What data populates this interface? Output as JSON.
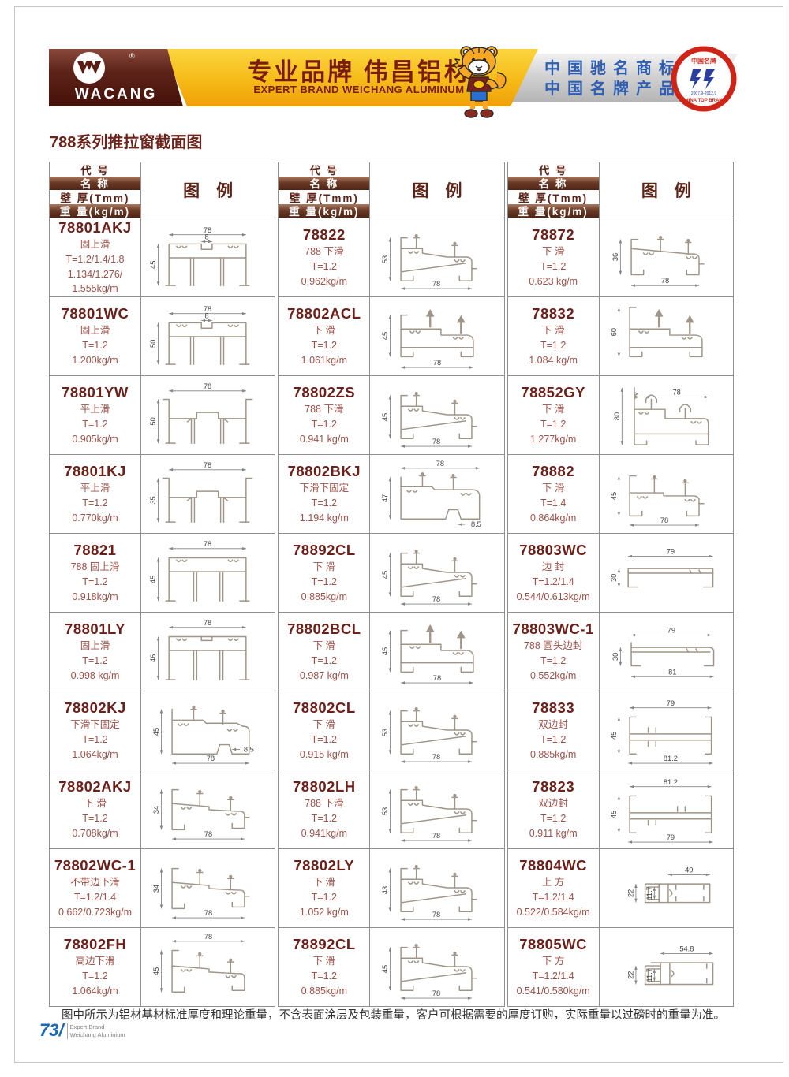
{
  "page": {
    "title": "788系列推拉窗截面图",
    "footer_note": "图中所示为铝材基材标准厚度和理论重量，不含表面涂层及包装重量，客户可根据需要的厚度订购，实际重量以过磅时的重量为准。",
    "page_number": "73/",
    "page_caption_line1": "Expert Brand",
    "page_caption_line2": "Weichang Aluminium"
  },
  "banner": {
    "logo_text": "WACANG",
    "logo_reg": "®",
    "slogan_cn": "专业品牌  伟昌铝材",
    "slogan_en": "EXPERT BRAND WEICHANG ALUMINUM",
    "honor_line1": "中国驰名商标",
    "honor_line2": "中国名牌产品",
    "badge_top": "中国名牌",
    "badge_dates": "2007.9-2012.9",
    "badge_bottom": "CHINA TOP BRAND",
    "colors": {
      "maroon": "#5e241a",
      "gold": "#f6bb18",
      "gray": "#c9c9c9",
      "blue": "#2f5fb3",
      "red": "#cf2418"
    }
  },
  "table": {
    "header": {
      "code": "代  号",
      "name": "名  称",
      "thickness": "壁 厚(Tmm)",
      "weight": "重 量(kg/m)",
      "legend": "图　例"
    },
    "columns": [
      {
        "rows": [
          {
            "code": "78801AKJ",
            "name": "固上滑",
            "thickness": "T=1.2/1.4/1.8",
            "weight": "1.134/1.276/\n1.555kg/m",
            "shape": "fixedTop",
            "dims": {
              "top": "78",
              "topSmall": "8",
              "left": "45"
            }
          },
          {
            "code": "78801WC",
            "name": "固上滑",
            "thickness": "T=1.2",
            "weight": "1.200kg/m",
            "shape": "fixedTop",
            "dims": {
              "top": "78",
              "topSmall": "8",
              "left": "50"
            }
          },
          {
            "code": "78801YW",
            "name": "平上滑",
            "thickness": "T=1.2",
            "weight": "0.905kg/m",
            "shape": "flatTop",
            "dims": {
              "top": "78",
              "left": "50"
            }
          },
          {
            "code": "78801KJ",
            "name": "平上滑",
            "thickness": "T=1.2",
            "weight": "0.770kg/m",
            "shape": "flatTop",
            "dims": {
              "top": "78",
              "left": "35"
            }
          },
          {
            "code": "78821",
            "name": "788 固上滑",
            "thickness": "T=1.2",
            "weight": "0.918kg/m",
            "shape": "boxTop",
            "dims": {
              "top": "78",
              "left": "45"
            }
          },
          {
            "code": "78801LY",
            "name": "固上滑",
            "thickness": "T=1.2",
            "weight": "0.998 kg/m",
            "shape": "boxTopNotch",
            "dims": {
              "top": "78",
              "left": "46"
            }
          },
          {
            "code": "78802KJ",
            "name": "下滑下固定",
            "thickness": "T=1.2",
            "weight": "1.064kg/m",
            "shape": "slideNotchB",
            "dims": {
              "left": "45",
              "small": "8.5",
              "bottom": "78"
            }
          },
          {
            "code": "78802AKJ",
            "name": "下 滑",
            "thickness": "T=1.2",
            "weight": "0.708kg/m",
            "shape": "slide",
            "dims": {
              "left": "34",
              "bottom": "78"
            }
          },
          {
            "code": "78802WC-1",
            "name": "不带边下滑",
            "thickness": "T=1.2/1.4",
            "weight": "0.662/0.723kg/m",
            "shape": "slide",
            "dims": {
              "left": "34",
              "bottom": "78"
            }
          },
          {
            "code": "78802FH",
            "name": "高边下滑",
            "thickness": "T=1.2",
            "weight": "1.064kg/m",
            "shape": "slideTopDim",
            "dims": {
              "top": "78",
              "left": "45"
            }
          }
        ]
      },
      {
        "rows": [
          {
            "code": "78822",
            "name": "788 下滑",
            "thickness": "T=1.2",
            "weight": "0.962kg/m",
            "shape": "slideSloped",
            "dims": {
              "left": "53",
              "bottom": "78"
            }
          },
          {
            "code": "78802ACL",
            "name": "下 滑",
            "thickness": "T=1.2",
            "weight": "1.061kg/m",
            "shape": "slideArrows",
            "dims": {
              "left": "45",
              "bottom": "78"
            }
          },
          {
            "code": "78802ZS",
            "name": "788 下滑",
            "thickness": "T=1.2",
            "weight": "0.941 kg/m",
            "shape": "slideSloped",
            "dims": {
              "left": "45",
              "bottom": "78"
            }
          },
          {
            "code": "78802BKJ",
            "name": "下滑下固定",
            "thickness": "T=1.2",
            "weight": "1.194 kg/m",
            "shape": "slideNotchT",
            "dims": {
              "top": "78",
              "left": "47",
              "small": "8.5"
            }
          },
          {
            "code": "78892CL",
            "name": "下 滑",
            "thickness": "T=1.2",
            "weight": "0.885kg/m",
            "shape": "slideSloped",
            "dims": {
              "left": "45",
              "bottom": "78"
            }
          },
          {
            "code": "78802BCL",
            "name": "下 滑",
            "thickness": "T=1.2",
            "weight": "0.987 kg/m",
            "shape": "slideArrows",
            "dims": {
              "left": "45",
              "bottom": "78"
            }
          },
          {
            "code": "78802CL",
            "name": "下 滑",
            "thickness": "T=1.2",
            "weight": "0.915 kg/m",
            "shape": "slideSloped",
            "dims": {
              "left": "53",
              "bottom": "78"
            }
          },
          {
            "code": "78802LH",
            "name": "788 下滑",
            "thickness": "T=1.2",
            "weight": "0.941kg/m",
            "shape": "slideSloped",
            "dims": {
              "left": "53",
              "bottom": "78"
            }
          },
          {
            "code": "78802LY",
            "name": "下 滑",
            "thickness": "T=1.2",
            "weight": "1.052 kg/m",
            "shape": "slideSloped",
            "dims": {
              "left": "43",
              "bottom": "78"
            }
          },
          {
            "code": "78892CL",
            "name": "下 滑",
            "thickness": "T=1.2",
            "weight": "0.885kg/m",
            "shape": "slideSloped",
            "dims": {
              "left": "45",
              "bottom": "78"
            }
          }
        ]
      },
      {
        "rows": [
          {
            "code": "78872",
            "name": "下 滑",
            "thickness": "T=1.2",
            "weight": "0.623 kg/m",
            "shape": "slideLow",
            "dims": {
              "left": "36",
              "bottom": "78"
            }
          },
          {
            "code": "78832",
            "name": "下 滑",
            "thickness": "T=1.2",
            "weight": "1.084 kg/m",
            "shape": "slideArrowsTall",
            "dims": {
              "left": "60"
            }
          },
          {
            "code": "78852GY",
            "name": "下 滑",
            "thickness": "T=1.2",
            "weight": "1.277kg/m",
            "shape": "steppedDouble",
            "dims": {
              "left": "80",
              "top": "78"
            }
          },
          {
            "code": "78882",
            "name": "下 滑",
            "thickness": "T=1.4",
            "weight": "0.864kg/m",
            "shape": "slideFlat",
            "dims": {
              "left": "45",
              "bottom": "78"
            }
          },
          {
            "code": "78803WC",
            "name": "边 封",
            "thickness": "T=1.2/1.4",
            "weight": "0.544/0.613kg/m",
            "shape": "edgeSeal",
            "dims": {
              "top": "79",
              "left": "30"
            }
          },
          {
            "code": "78803WC-1",
            "name": "788 圆头边封",
            "thickness": "T=1.2",
            "weight": "0.552kg/m",
            "shape": "edgeSeal2",
            "dims": {
              "top": "79",
              "left": "30",
              "bottom": "81"
            }
          },
          {
            "code": "78833",
            "name": "双边封",
            "thickness": "T=1.2",
            "weight": "0.885kg/m",
            "shape": "doubleSeal",
            "dims": {
              "top": "79",
              "left": "45",
              "bottom": "81.2"
            }
          },
          {
            "code": "78823",
            "name": "双边封",
            "thickness": "T=1.2",
            "weight": "0.911 kg/m",
            "shape": "doubleSeal2",
            "dims": {
              "top": "81.2",
              "left": "45",
              "bottom": "79"
            }
          },
          {
            "code": "78804WC",
            "name": "上 方",
            "thickness": "T=1.2/1.4",
            "weight": "0.522/0.584kg/m",
            "shape": "smallFrame",
            "dims": {
              "top": "49",
              "left": "22",
              "inner": "11.7"
            }
          },
          {
            "code": "78805WC",
            "name": "下 方",
            "thickness": "T=1.2/1.4",
            "weight": "0.541/0.580kg/m",
            "shape": "smallFrame2",
            "dims": {
              "top": "54.8",
              "left": "22",
              "inner": "11.7"
            }
          }
        ]
      }
    ]
  }
}
